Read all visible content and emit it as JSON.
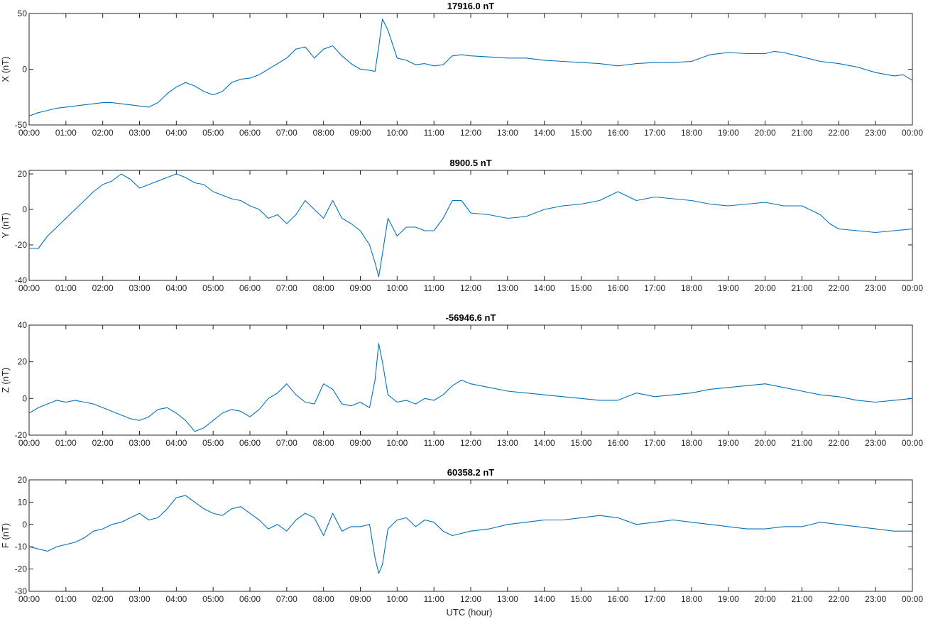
{
  "colors": {
    "line": "#0072bd",
    "axis": "#262626",
    "background": "#ffffff"
  },
  "xlabel": "UTC (hour)",
  "x_tick_labels": [
    "00:00",
    "01:00",
    "02:00",
    "03:00",
    "04:00",
    "05:00",
    "06:00",
    "07:00",
    "08:00",
    "09:00",
    "10:00",
    "11:00",
    "12:00",
    "13:00",
    "14:00",
    "15:00",
    "16:00",
    "17:00",
    "18:00",
    "19:00",
    "20:00",
    "21:00",
    "22:00",
    "23:00",
    "00:00"
  ],
  "chart_data": [
    {
      "type": "line",
      "title": "17916.0 nT",
      "ylabel": "X (nT)",
      "xlim": [
        0,
        24
      ],
      "ylim": [
        -50,
        50
      ],
      "yticks": [
        -50,
        0,
        50
      ],
      "grid": false,
      "x": [
        0,
        0.25,
        0.5,
        0.75,
        1,
        1.25,
        1.5,
        1.75,
        2,
        2.25,
        2.5,
        2.75,
        3,
        3.25,
        3.5,
        3.75,
        4,
        4.25,
        4.5,
        4.75,
        5,
        5.25,
        5.5,
        5.75,
        6,
        6.25,
        6.5,
        6.75,
        7,
        7.25,
        7.5,
        7.75,
        8,
        8.25,
        8.5,
        8.75,
        9,
        9.25,
        9.4,
        9.5,
        9.6,
        9.75,
        10,
        10.25,
        10.5,
        10.75,
        11,
        11.25,
        11.5,
        11.75,
        12,
        12.5,
        13,
        13.5,
        14,
        14.5,
        15,
        15.5,
        16,
        16.5,
        17,
        17.5,
        18,
        18.5,
        19,
        19.5,
        20,
        20.25,
        20.5,
        21,
        21.5,
        22,
        22.5,
        23,
        23.5,
        23.75,
        24
      ],
      "series": [
        {
          "values": [
            -42,
            -39,
            -37,
            -35,
            -34,
            -33,
            -32,
            -31,
            -30,
            -30,
            -31,
            -32,
            -33,
            -34,
            -30,
            -22,
            -16,
            -12,
            -15,
            -20,
            -23,
            -20,
            -12,
            -9,
            -8,
            -5,
            0,
            5,
            10,
            18,
            20,
            10,
            18,
            21,
            12,
            5,
            0,
            -1,
            -2,
            20,
            45,
            35,
            10,
            8,
            4,
            5,
            3,
            4,
            12,
            13,
            12,
            11,
            10,
            10,
            8,
            7,
            6,
            5,
            3,
            5,
            6,
            6,
            7,
            13,
            15,
            14,
            14,
            16,
            15,
            11,
            7,
            5,
            2,
            -3,
            -6,
            -5,
            -10
          ]
        }
      ]
    },
    {
      "type": "line",
      "title": "8900.5 nT",
      "ylabel": "Y (nT)",
      "xlim": [
        0,
        24
      ],
      "ylim": [
        -40,
        22
      ],
      "yticks": [
        -40,
        -20,
        0,
        20
      ],
      "grid": false,
      "x": [
        0,
        0.25,
        0.5,
        0.75,
        1,
        1.25,
        1.5,
        1.75,
        2,
        2.25,
        2.5,
        2.75,
        3,
        3.25,
        3.5,
        3.75,
        4,
        4.25,
        4.5,
        4.75,
        5,
        5.25,
        5.5,
        5.75,
        6,
        6.25,
        6.5,
        6.75,
        7,
        7.25,
        7.5,
        7.75,
        8,
        8.25,
        8.5,
        8.75,
        9,
        9.25,
        9.4,
        9.5,
        9.6,
        9.75,
        10,
        10.25,
        10.5,
        10.75,
        11,
        11.25,
        11.5,
        11.75,
        12,
        12.5,
        13,
        13.5,
        14,
        14.5,
        15,
        15.5,
        16,
        16.5,
        17,
        17.5,
        18,
        18.5,
        19,
        19.5,
        20,
        20.5,
        21,
        21.5,
        21.75,
        22,
        22.5,
        23,
        23.5,
        24
      ],
      "series": [
        {
          "values": [
            -22,
            -22,
            -15,
            -10,
            -5,
            0,
            5,
            10,
            14,
            16,
            20,
            17,
            12,
            14,
            16,
            18,
            20,
            18,
            15,
            14,
            10,
            8,
            6,
            5,
            2,
            0,
            -5,
            -3,
            -8,
            -3,
            5,
            0,
            -5,
            5,
            -5,
            -8,
            -12,
            -20,
            -30,
            -38,
            -25,
            -5,
            -15,
            -10,
            -10,
            -12,
            -12,
            -5,
            5,
            5,
            -2,
            -3,
            -5,
            -4,
            0,
            2,
            3,
            5,
            10,
            5,
            7,
            6,
            5,
            3,
            2,
            3,
            4,
            2,
            2,
            -3,
            -8,
            -11,
            -12,
            -13,
            -12,
            -11
          ]
        }
      ]
    },
    {
      "type": "line",
      "title": "-56946.6 nT",
      "ylabel": "Z (nT)",
      "xlim": [
        0,
        24
      ],
      "ylim": [
        -20,
        40
      ],
      "yticks": [
        -20,
        0,
        20,
        40
      ],
      "grid": false,
      "x": [
        0,
        0.25,
        0.5,
        0.75,
        1,
        1.25,
        1.5,
        1.75,
        2,
        2.25,
        2.5,
        2.75,
        3,
        3.25,
        3.5,
        3.75,
        4,
        4.25,
        4.5,
        4.75,
        5,
        5.25,
        5.5,
        5.75,
        6,
        6.25,
        6.5,
        6.75,
        7,
        7.25,
        7.5,
        7.75,
        8,
        8.25,
        8.5,
        8.75,
        9,
        9.25,
        9.4,
        9.5,
        9.6,
        9.75,
        10,
        10.25,
        10.5,
        10.75,
        11,
        11.25,
        11.5,
        11.75,
        12,
        12.5,
        13,
        13.5,
        14,
        14.5,
        15,
        15.5,
        16,
        16.5,
        17,
        17.5,
        18,
        18.5,
        19,
        19.5,
        20,
        20.5,
        21,
        21.5,
        22,
        22.5,
        23,
        23.5,
        24
      ],
      "series": [
        {
          "values": [
            -8,
            -5,
            -3,
            -1,
            -2,
            -1,
            -2,
            -3,
            -5,
            -7,
            -9,
            -11,
            -12,
            -10,
            -6,
            -5,
            -8,
            -12,
            -18,
            -16,
            -12,
            -8,
            -6,
            -7,
            -10,
            -6,
            0,
            3,
            8,
            2,
            -2,
            -3,
            8,
            5,
            -3,
            -4,
            -2,
            -5,
            10,
            30,
            20,
            2,
            -2,
            -1,
            -3,
            0,
            -1,
            2,
            7,
            10,
            8,
            6,
            4,
            3,
            2,
            1,
            0,
            -1,
            -1,
            3,
            1,
            2,
            3,
            5,
            6,
            7,
            8,
            6,
            4,
            2,
            1,
            -1,
            -2,
            -1,
            0
          ]
        }
      ]
    },
    {
      "type": "line",
      "title": "60358.2 nT",
      "ylabel": "F (nT)",
      "xlim": [
        0,
        24
      ],
      "ylim": [
        -30,
        20
      ],
      "yticks": [
        -30,
        -20,
        -10,
        0,
        10,
        20
      ],
      "grid": false,
      "x": [
        0,
        0.25,
        0.5,
        0.75,
        1,
        1.25,
        1.5,
        1.75,
        2,
        2.25,
        2.5,
        2.75,
        3,
        3.25,
        3.5,
        3.75,
        4,
        4.25,
        4.5,
        4.75,
        5,
        5.25,
        5.5,
        5.75,
        6,
        6.25,
        6.5,
        6.75,
        7,
        7.25,
        7.5,
        7.75,
        8,
        8.25,
        8.5,
        8.75,
        9,
        9.25,
        9.4,
        9.5,
        9.6,
        9.75,
        10,
        10.25,
        10.5,
        10.75,
        11,
        11.25,
        11.5,
        11.75,
        12,
        12.5,
        13,
        13.5,
        14,
        14.5,
        15,
        15.5,
        16,
        16.5,
        17,
        17.5,
        18,
        18.5,
        19,
        19.5,
        20,
        20.5,
        21,
        21.5,
        22,
        22.5,
        23,
        23.5,
        24
      ],
      "series": [
        {
          "values": [
            -10,
            -11,
            -12,
            -10,
            -9,
            -8,
            -6,
            -3,
            -2,
            0,
            1,
            3,
            5,
            2,
            3,
            7,
            12,
            13,
            10,
            7,
            5,
            4,
            7,
            8,
            5,
            2,
            -2,
            0,
            -3,
            2,
            5,
            3,
            -5,
            5,
            -3,
            -1,
            -1,
            0,
            -15,
            -22,
            -18,
            -2,
            2,
            3,
            -1,
            2,
            1,
            -3,
            -5,
            -4,
            -3,
            -2,
            0,
            1,
            2,
            2,
            3,
            4,
            3,
            0,
            1,
            2,
            1,
            0,
            -1,
            -2,
            -2,
            -1,
            -1,
            1,
            0,
            -1,
            -2,
            -3,
            -3
          ]
        }
      ]
    }
  ]
}
